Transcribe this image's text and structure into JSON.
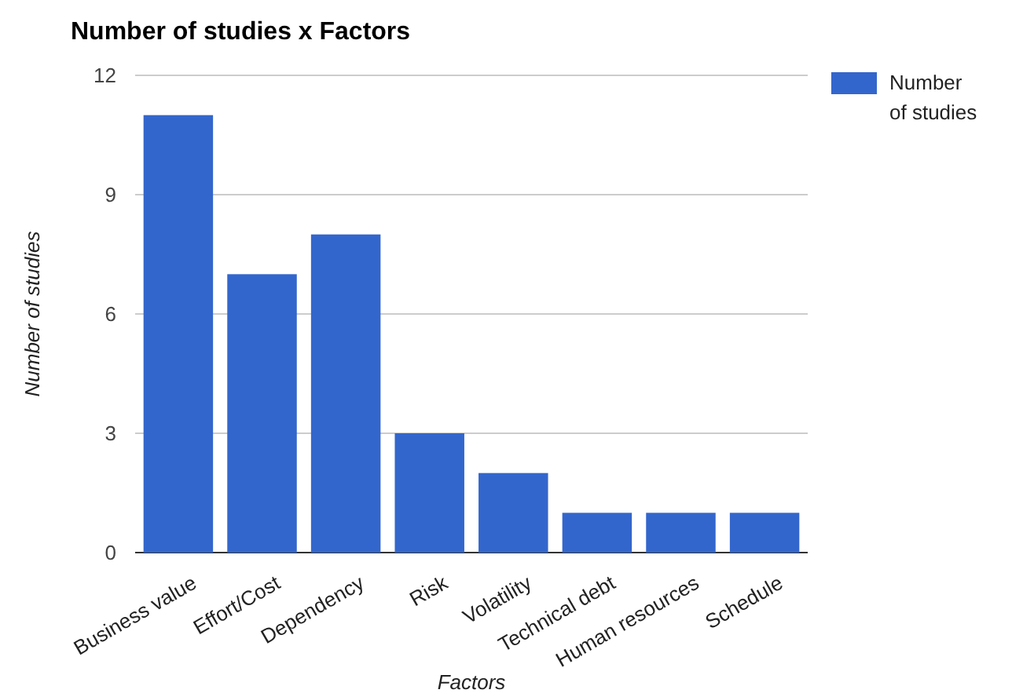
{
  "chart_data": {
    "type": "bar",
    "title": "Number of studies x Factors",
    "xlabel": "Factors",
    "ylabel": "Number of studies",
    "categories": [
      "Business value",
      "Effort/Cost",
      "Dependency",
      "Risk",
      "Volatility",
      "Technical debt",
      "Human resources",
      "Schedule"
    ],
    "series": [
      {
        "name": "Number of studies",
        "color": "#3366cc",
        "values": [
          11,
          7,
          8,
          3,
          2,
          1,
          1,
          1
        ]
      }
    ],
    "ylim": [
      0,
      12
    ],
    "yticks": [
      0,
      3,
      6,
      9,
      12
    ],
    "grid": "y",
    "legend": "top right"
  }
}
